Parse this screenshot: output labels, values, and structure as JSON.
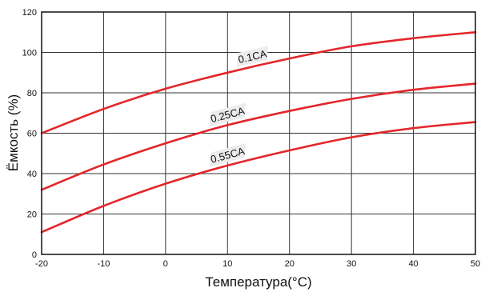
{
  "chart_data": {
    "type": "line",
    "xlabel": "Температура(°C)",
    "ylabel": "Ёмкость (%)",
    "xlim": [
      -20,
      50
    ],
    "ylim": [
      0,
      120
    ],
    "x_ticks": [
      -20,
      -10,
      0,
      10,
      20,
      30,
      40,
      50
    ],
    "y_ticks": [
      0,
      20,
      40,
      60,
      80,
      100,
      120
    ],
    "grid": true,
    "series_color": "#e3262b",
    "series": [
      {
        "name": "0.1CA",
        "x": [
          -20,
          -10,
          0,
          10,
          20,
          30,
          40,
          50
        ],
        "values": [
          60,
          72,
          82,
          90,
          97,
          103,
          107,
          110
        ]
      },
      {
        "name": "0.25CA",
        "x": [
          -20,
          -10,
          0,
          10,
          20,
          30,
          40,
          50
        ],
        "values": [
          32,
          44.5,
          55,
          64,
          71,
          77,
          81.5,
          84.5
        ]
      },
      {
        "name": "0.55CA",
        "x": [
          -20,
          -10,
          0,
          10,
          20,
          30,
          40,
          50
        ],
        "values": [
          11,
          24,
          35,
          44,
          51.5,
          58,
          62.5,
          65.5
        ]
      }
    ]
  }
}
